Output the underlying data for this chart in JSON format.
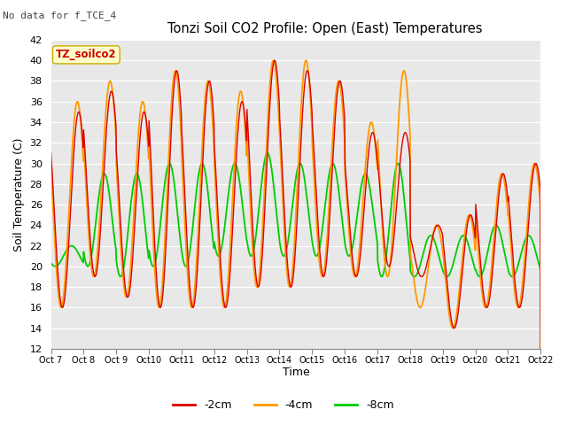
{
  "title": "Tonzi Soil CO2 Profile: Open (East) Temperatures",
  "no_data_note": "No data for f_TCE_4",
  "legend_label": "TZ_soilco2",
  "ylabel": "Soil Temperature (C)",
  "xlabel": "Time",
  "ylim": [
    12,
    42
  ],
  "yticks": [
    12,
    14,
    16,
    18,
    20,
    22,
    24,
    26,
    28,
    30,
    32,
    34,
    36,
    38,
    40,
    42
  ],
  "xtick_labels": [
    "Oct 7",
    "Oct 8",
    "Oct 9",
    "Oct 10",
    "Oct 11",
    "Oct 12",
    "Oct 13",
    "Oct 14",
    "Oct 15",
    "Oct 16",
    "Oct 17",
    "Oct 18",
    "Oct 19",
    "Oct 20",
    "Oct 21",
    "Oct 22"
  ],
  "color_2cm": "#dd0000",
  "color_4cm": "#ff9900",
  "color_8cm": "#00cc00",
  "bg_color": "#e8e8e8",
  "series_labels": [
    "-2cm",
    "-4cm",
    "-8cm"
  ],
  "n_days": 15,
  "samples_per_day": 96,
  "figsize": [
    6.4,
    4.8
  ],
  "dpi": 100,
  "peaks_2cm": [
    35,
    37,
    35,
    39,
    38,
    36,
    40,
    39,
    38,
    33,
    33,
    24,
    25,
    29,
    30
  ],
  "troughs_2cm": [
    16,
    19,
    17,
    16,
    16,
    16,
    18,
    18,
    19,
    19,
    20,
    19,
    14,
    16,
    16
  ],
  "peaks_4cm": [
    36,
    38,
    36,
    39,
    38,
    37,
    40,
    40,
    38,
    34,
    39,
    24,
    25,
    29,
    30
  ],
  "troughs_4cm": [
    16,
    19,
    17,
    16,
    16,
    16,
    18,
    18,
    19,
    19,
    19,
    16,
    14,
    16,
    16
  ],
  "peaks_8cm": [
    22,
    29,
    29,
    30,
    30,
    30,
    31,
    30,
    30,
    29,
    30,
    23,
    23,
    24,
    23
  ],
  "troughs_8cm": [
    20,
    20,
    19,
    20,
    20,
    21,
    21,
    21,
    21,
    21,
    19,
    19,
    19,
    19,
    19
  ],
  "phase_shift_2cm": 0.0,
  "phase_shift_4cm": 0.04,
  "phase_shift_8cm": 0.22,
  "peak_time": 0.6
}
